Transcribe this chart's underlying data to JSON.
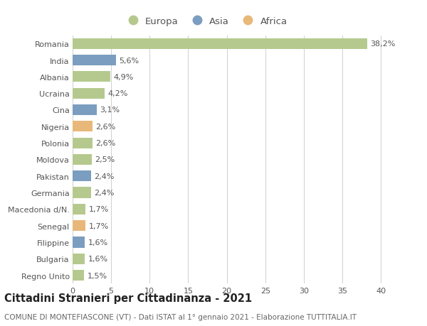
{
  "categories": [
    "Romania",
    "India",
    "Albania",
    "Ucraina",
    "Cina",
    "Nigeria",
    "Polonia",
    "Moldova",
    "Pakistan",
    "Germania",
    "Macedonia d/N.",
    "Senegal",
    "Filippine",
    "Bulgaria",
    "Regno Unito"
  ],
  "values": [
    38.2,
    5.6,
    4.9,
    4.2,
    3.1,
    2.6,
    2.6,
    2.5,
    2.4,
    2.4,
    1.7,
    1.7,
    1.6,
    1.6,
    1.5
  ],
  "labels": [
    "38,2%",
    "5,6%",
    "4,9%",
    "4,2%",
    "3,1%",
    "2,6%",
    "2,6%",
    "2,5%",
    "2,4%",
    "2,4%",
    "1,7%",
    "1,7%",
    "1,6%",
    "1,6%",
    "1,5%"
  ],
  "continents": [
    "Europa",
    "Asia",
    "Europa",
    "Europa",
    "Asia",
    "Africa",
    "Europa",
    "Europa",
    "Asia",
    "Europa",
    "Europa",
    "Africa",
    "Asia",
    "Europa",
    "Europa"
  ],
  "colors": {
    "Europa": "#b5c98e",
    "Asia": "#7b9dc0",
    "Africa": "#e8b87a"
  },
  "legend_items": [
    "Europa",
    "Asia",
    "Africa"
  ],
  "legend_colors": [
    "#b5c98e",
    "#7b9dc0",
    "#e8b87a"
  ],
  "xlim": [
    0,
    41
  ],
  "xticks": [
    0,
    5,
    10,
    15,
    20,
    25,
    30,
    35,
    40
  ],
  "title1": "Cittadini Stranieri per Cittadinanza - 2021",
  "title2": "COMUNE DI MONTEFIASCONE (VT) - Dati ISTAT al 1° gennaio 2021 - Elaborazione TUTTITALIA.IT",
  "bg_color": "#ffffff",
  "grid_color": "#d0d0d0",
  "bar_height": 0.65,
  "label_fontsize": 8.0,
  "tick_fontsize": 8.0,
  "title1_fontsize": 10.5,
  "title2_fontsize": 7.5
}
